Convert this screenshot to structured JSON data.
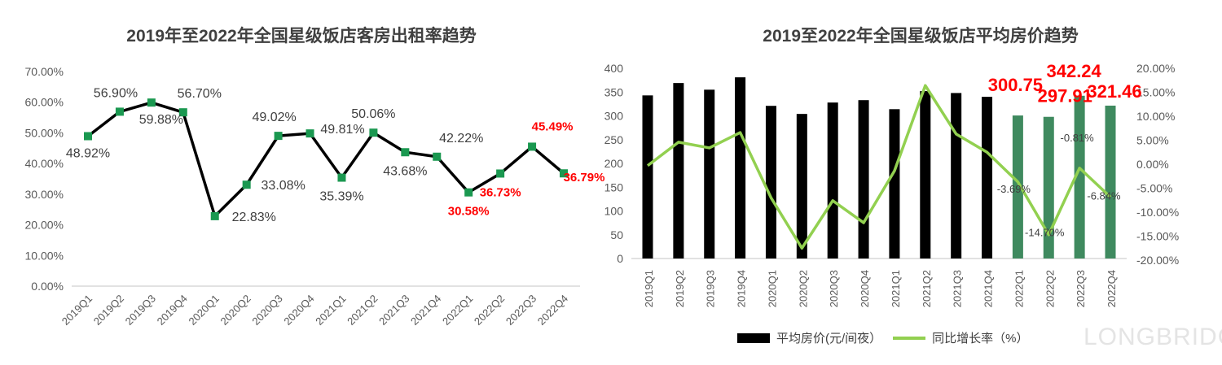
{
  "watermark": "LONGBRIDGE",
  "chart_data": [
    {
      "type": "line",
      "title": "2019年至2022年全国星级饭店客房出租率趋势",
      "categories": [
        "2019Q1",
        "2019Q2",
        "2019Q3",
        "2019Q4",
        "2020Q1",
        "2020Q2",
        "2020Q3",
        "2020Q4",
        "2021Q1",
        "2021Q2",
        "2021Q3",
        "2021Q4",
        "2022Q1",
        "2022Q2",
        "2022Q3",
        "2022Q4"
      ],
      "values": [
        48.92,
        56.9,
        59.88,
        56.7,
        22.83,
        33.08,
        49.02,
        49.81,
        35.39,
        50.06,
        43.68,
        42.22,
        30.58,
        36.73,
        45.49,
        36.79
      ],
      "labels": [
        "48.92%",
        "56.90%",
        "59.88%",
        "56.70%",
        "22.83%",
        "33.08%",
        "49.02%",
        "49.81%",
        "35.39%",
        "50.06%",
        "43.68%",
        "42.22%",
        "30.58%",
        "36.73%",
        "45.49%",
        "36.79%"
      ],
      "ylim": [
        0,
        70
      ],
      "yticks": [
        "0.00%",
        "10.00%",
        "20.00%",
        "30.00%",
        "40.00%",
        "50.00%",
        "60.00%",
        "70.00%"
      ],
      "colors": {
        "line": "#000000",
        "marker": "#1a9850",
        "label": "#404040",
        "highlight": "#ff0000"
      }
    },
    {
      "type": "bar+line",
      "title": "2019至2022年全国星级饭店平均房价趋势",
      "categories": [
        "2019Q1",
        "2019Q2",
        "2019Q3",
        "2019Q4",
        "2020Q1",
        "2020Q2",
        "2020Q3",
        "2020Q4",
        "2021Q1",
        "2021Q2",
        "2021Q3",
        "2021Q4",
        "2022Q1",
        "2022Q2",
        "2022Q3",
        "2022Q4"
      ],
      "series": [
        {
          "name": "平均房价(元/间夜）",
          "axis": "left",
          "values": [
            343,
            369,
            355,
            381,
            321,
            304,
            328,
            333,
            314,
            352,
            348,
            340,
            300.75,
            297.91,
            342.24,
            321.46
          ],
          "labels": {
            "12": "300.75",
            "13": "297.91",
            "14": "342.24",
            "15": "321.46"
          }
        },
        {
          "name": "同比增长率（%）",
          "axis": "right",
          "values": [
            -0.3,
            4.6,
            3.4,
            6.6,
            -7.0,
            -17.5,
            -7.6,
            -12.2,
            -1.4,
            16.4,
            6.3,
            2.5,
            -3.69,
            -14.7,
            -0.81,
            -6.84
          ],
          "labels": {
            "12": "-3.69%",
            "13": "-14.70%",
            "14": "-0.81%",
            "15": "-6.84%"
          }
        }
      ],
      "ylim_left": [
        0,
        400
      ],
      "yticks_left": [
        "0",
        "50",
        "100",
        "150",
        "200",
        "250",
        "300",
        "350",
        "400"
      ],
      "ylim_right": [
        -20,
        20
      ],
      "yticks_right": [
        "-20.00%",
        "-15.00%",
        "-10.00%",
        "-5.00%",
        "0.00%",
        "5.00%",
        "10.00%",
        "15.00%",
        "20.00%"
      ],
      "legend": "bottom",
      "colors": {
        "bar": "#000000",
        "bar_2022": "#3f8a5f",
        "line": "#92d050",
        "highlight": "#ff0000"
      }
    }
  ]
}
